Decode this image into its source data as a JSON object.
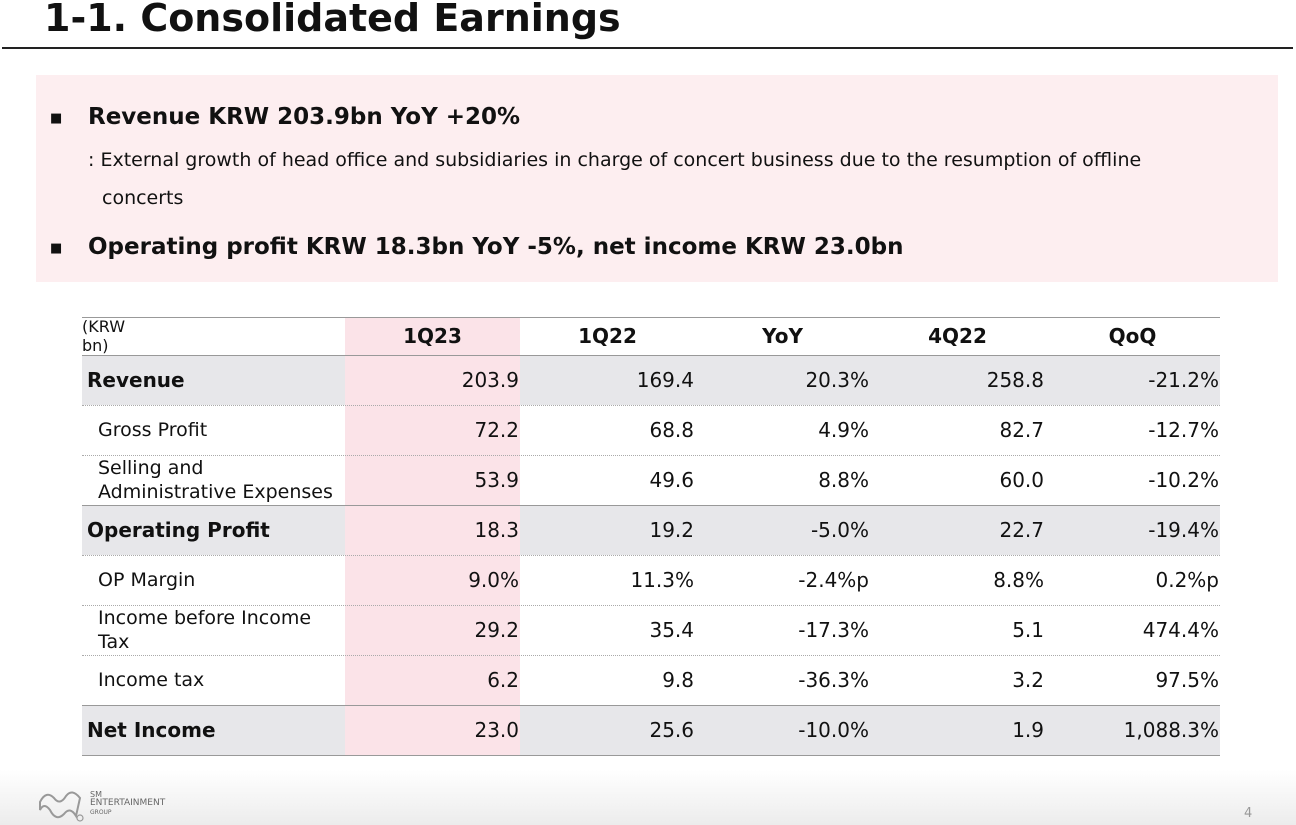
{
  "title": "1-1. Consolidated Earnings",
  "highlights": [
    {
      "heading": "Revenue KRW 203.9bn YoY +20%",
      "detail": ": External growth of head office and subsidiaries in charge of concert business due to the resumption of offline concerts"
    },
    {
      "heading": "Operating profit KRW 18.3bn YoY -5%, net income KRW 23.0bn"
    }
  ],
  "table": {
    "unit": "(KRW bn)",
    "columns": [
      "1Q23",
      "1Q22",
      "YoY",
      "4Q22",
      "QoQ"
    ],
    "rows": [
      {
        "label": [
          "Revenue"
        ],
        "bold": true,
        "cells": [
          "203.9",
          "169.4",
          "20.3%",
          "258.8",
          "-21.2%"
        ]
      },
      {
        "label": [
          "Gross Profit"
        ],
        "bold": false,
        "cells": [
          "72.2",
          "68.8",
          "4.9%",
          "82.7",
          "-12.7%"
        ]
      },
      {
        "label": [
          "Selling and",
          "Administrative Expenses"
        ],
        "bold": false,
        "cells": [
          "53.9",
          "49.6",
          "8.8%",
          "60.0",
          "-10.2%"
        ]
      },
      {
        "label": [
          "Operating Profit"
        ],
        "bold": true,
        "cells": [
          "18.3",
          "19.2",
          "-5.0%",
          "22.7",
          "-19.4%"
        ]
      },
      {
        "label": [
          "OP Margin"
        ],
        "bold": false,
        "cells": [
          "9.0%",
          "11.3%",
          "-2.4%p",
          "8.8%",
          "0.2%p"
        ]
      },
      {
        "label": [
          "Income before Income",
          "Tax"
        ],
        "bold": false,
        "cells": [
          "29.2",
          "35.4",
          "-17.3%",
          "5.1",
          "474.4%"
        ]
      },
      {
        "label": [
          "Income tax"
        ],
        "bold": false,
        "cells": [
          "6.2",
          "9.8",
          "-36.3%",
          "3.2",
          "97.5%"
        ]
      },
      {
        "label": [
          "Net Income"
        ],
        "bold": true,
        "cells": [
          "23.0",
          "25.6",
          "-10.0%",
          "1.9",
          "1,088.3%"
        ]
      }
    ]
  },
  "footer": {
    "logo": [
      "SM",
      "ENTERTAINMENT",
      "GROUP"
    ],
    "page": "4"
  }
}
